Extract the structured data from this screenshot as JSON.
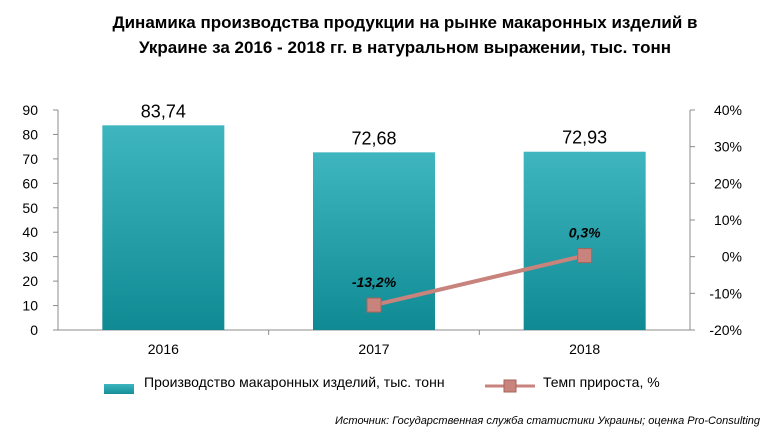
{
  "chart_data": {
    "type": "bar",
    "title_line1": "Динамика производства продукции на рынке макаронных изделий в",
    "title_line2": "Украине за 2016 - 2018 гг. в натуральном выражении, тыс. тонн",
    "categories": [
      "2016",
      "2017",
      "2018"
    ],
    "series": [
      {
        "name": "Производство макаронных изделий, тыс. тонн",
        "values": [
          83.74,
          72.68,
          72.93
        ],
        "labels": [
          "83,74",
          "72,68",
          "72,93"
        ],
        "color": "#1ea3ac",
        "axis": "left"
      },
      {
        "name": "Темп прироста, %",
        "values": [
          null,
          -13.2,
          0.3
        ],
        "labels": [
          "",
          "-13,2%",
          "0,3%"
        ],
        "color": "#c8837c",
        "axis": "right",
        "type": "line"
      }
    ],
    "y_left": {
      "min": 0,
      "max": 90,
      "step": 10,
      "ticks": [
        "0",
        "10",
        "20",
        "30",
        "40",
        "50",
        "60",
        "70",
        "80",
        "90"
      ]
    },
    "y_right": {
      "min": -20,
      "max": 40,
      "step": 10,
      "ticks": [
        "-20%",
        "-10%",
        "0%",
        "10%",
        "20%",
        "30%",
        "40%"
      ]
    },
    "grid": false,
    "legend_position": "bottom"
  },
  "legend": {
    "bar_label": "Производство макаронных изделий, тыс. тонн",
    "line_label": "Темп прироста, %"
  },
  "source": "Источник: Государственная служба статистики Украины; оценка Pro-Consulting"
}
